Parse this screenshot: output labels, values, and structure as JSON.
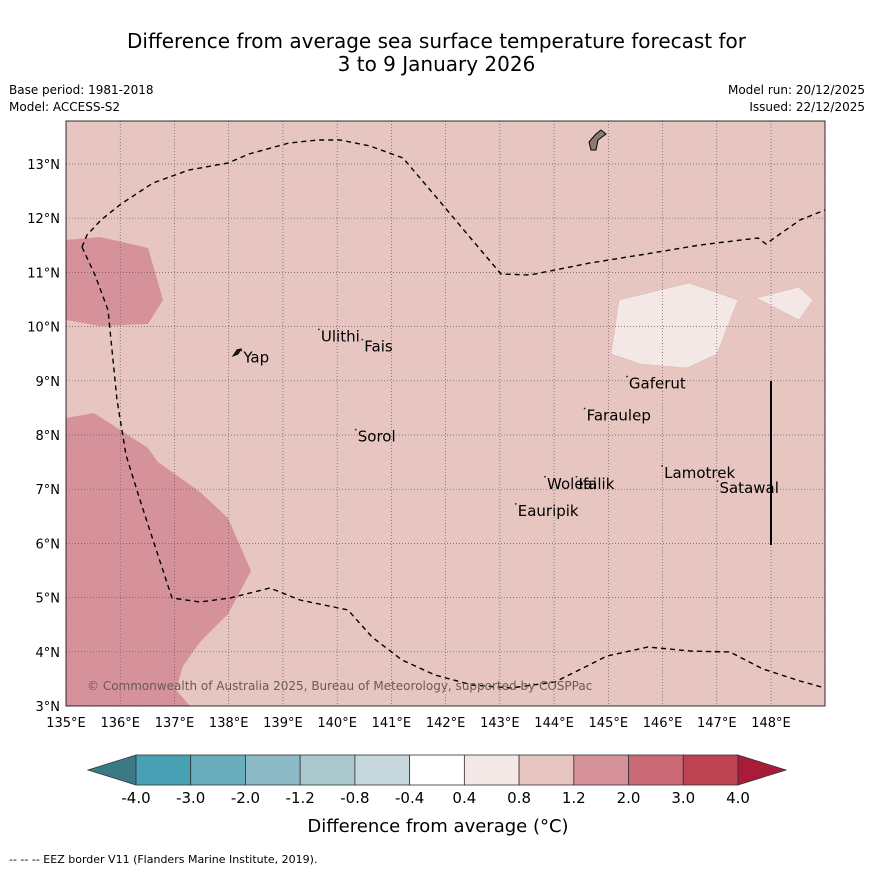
{
  "title": {
    "line1": "Difference from average sea surface temperature forecast for",
    "line2": "3 to 9 January 2026"
  },
  "meta": {
    "base_period": "Base period: 1981-2018",
    "model": "Model: ACCESS-S2",
    "model_run": "Model run: 20/12/2025",
    "issued": "Issued: 22/12/2025"
  },
  "map": {
    "lon_labels": [
      "135°E",
      "136°E",
      "137°E",
      "138°E",
      "139°E",
      "140°E",
      "141°E",
      "142°E",
      "143°E",
      "144°E",
      "145°E",
      "146°E",
      "147°E",
      "148°E"
    ],
    "lat_labels": [
      "13°N",
      "12°N",
      "11°N",
      "10°N",
      "9°N",
      "8°N",
      "7°N",
      "6°N",
      "5°N",
      "4°N",
      "3°N"
    ],
    "lon_range": [
      135,
      149
    ],
    "lat_range": [
      3,
      13.8
    ],
    "places": [
      {
        "name": "Yap",
        "lon": 138.27,
        "lat": 9.43
      },
      {
        "name": "Ulithi",
        "lon": 139.7,
        "lat": 9.82
      },
      {
        "name": "Fais",
        "lon": 140.5,
        "lat": 9.63
      },
      {
        "name": "Gaferut",
        "lon": 145.38,
        "lat": 8.95
      },
      {
        "name": "Faraulep",
        "lon": 144.6,
        "lat": 8.36
      },
      {
        "name": "Sorol",
        "lon": 140.38,
        "lat": 7.97
      },
      {
        "name": "Woleai",
        "lon": 143.87,
        "lat": 7.1
      },
      {
        "name": "Ifalik",
        "lon": 144.45,
        "lat": 7.1
      },
      {
        "name": "Lamotrek",
        "lon": 146.03,
        "lat": 7.3
      },
      {
        "name": "Satawal",
        "lon": 147.05,
        "lat": 7.02
      },
      {
        "name": "Eauripik",
        "lon": 143.33,
        "lat": 6.6
      }
    ],
    "copyright": "© Commonwealth of Australia 2025, Bureau of Meteorology, supported by COSPPac",
    "background_color": "#e7c6c1",
    "warm_color": "#d6929a",
    "neutral_color": "#f3e8e6"
  },
  "colorbar": {
    "labels": [
      "-4.0",
      "-3.0",
      "-2.0",
      "-1.2",
      "-0.8",
      "-0.4",
      "0.4",
      "0.8",
      "1.2",
      "2.0",
      "3.0",
      "4.0"
    ],
    "colors": [
      "#47a0b4",
      "#69adbd",
      "#8bb9c5",
      "#aac8ce",
      "#c7d8dc",
      "#ffffff",
      "#f3e8e6",
      "#e7c6c1",
      "#d6929a",
      "#cb6a76",
      "#bd4252"
    ],
    "low_extend_color": "#3a7a86",
    "high_extend_color": "#a81c3a",
    "label": "Difference from average (°C)"
  },
  "footer": "--  --  -- EEZ border V11 (Flanders Marine Institute, 2019)."
}
